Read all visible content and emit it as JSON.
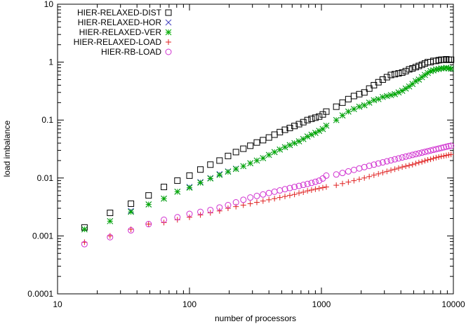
{
  "chart_data": {
    "type": "scatter",
    "title": "",
    "xlabel": "number of processors",
    "ylabel": "load imbalance",
    "x_scale": "log",
    "y_scale": "log",
    "xlim": [
      10,
      10000
    ],
    "ylim": [
      0.0001,
      10
    ],
    "x_ticks": [
      {
        "value": 10,
        "label": "10"
      },
      {
        "value": 100,
        "label": "100"
      },
      {
        "value": 1000,
        "label": "1000"
      },
      {
        "value": 10000,
        "label": "10000"
      }
    ],
    "y_ticks": [
      {
        "value": 10,
        "label": "10"
      },
      {
        "value": 1,
        "label": "1"
      },
      {
        "value": 0.1,
        "label": "0.1"
      },
      {
        "value": 0.01,
        "label": "0.01"
      },
      {
        "value": 0.001,
        "label": "0.001"
      },
      {
        "value": 0.0001,
        "label": "0.0001"
      }
    ],
    "grid": false,
    "legend_position": "top-left",
    "x": [
      16,
      25,
      36,
      49,
      64,
      81,
      100,
      121,
      144,
      169,
      196,
      225,
      256,
      289,
      324,
      361,
      400,
      441,
      484,
      529,
      576,
      625,
      676,
      729,
      784,
      841,
      900,
      961,
      1024,
      1089,
      1296,
      1444,
      1600,
      1764,
      1936,
      2116,
      2304,
      2500,
      2704,
      2916,
      3136,
      3364,
      3600,
      3844,
      4096,
      4356,
      4624,
      4900,
      5184,
      5476,
      5776,
      6084,
      6400,
      6724,
      7056,
      7396,
      7744,
      8100,
      8464,
      8836,
      9216,
      9604
    ],
    "series": [
      {
        "name": "HIER-RELAXED-DIST",
        "marker": "square",
        "color": "#000000",
        "values": [
          0.0014,
          0.0025,
          0.0036,
          0.005,
          0.007,
          0.009,
          0.011,
          0.014,
          0.017,
          0.02,
          0.024,
          0.028,
          0.032,
          0.036,
          0.041,
          0.045,
          0.05,
          0.056,
          0.062,
          0.068,
          0.073,
          0.079,
          0.085,
          0.092,
          0.1,
          0.105,
          0.11,
          0.115,
          0.125,
          0.14,
          0.17,
          0.2,
          0.23,
          0.26,
          0.28,
          0.3,
          0.35,
          0.4,
          0.45,
          0.5,
          0.55,
          0.6,
          0.62,
          0.64,
          0.66,
          0.7,
          0.75,
          0.78,
          0.82,
          0.86,
          0.9,
          0.95,
          1.0,
          1.0,
          1.05,
          1.05,
          1.08,
          1.1,
          1.1,
          1.12,
          1.1,
          1.1
        ]
      },
      {
        "name": "HIER-RELAXED-HOR",
        "marker": "x",
        "color": "#4040c0",
        "values": [
          0.0013,
          0.0018,
          0.0027,
          0.0035,
          0.0044,
          0.0058,
          0.007,
          0.0085,
          0.01,
          0.0117,
          0.013,
          0.0145,
          0.016,
          0.018,
          0.02,
          0.022,
          0.025,
          0.028,
          0.031,
          0.034,
          0.037,
          0.04,
          0.043,
          0.047,
          0.052,
          0.056,
          0.06,
          0.065,
          0.07,
          0.08,
          0.1,
          0.12,
          0.14,
          0.155,
          0.17,
          0.18,
          0.2,
          0.22,
          0.23,
          0.25,
          0.26,
          0.27,
          0.28,
          0.3,
          0.32,
          0.35,
          0.38,
          0.42,
          0.47,
          0.5,
          0.55,
          0.6,
          0.65,
          0.7,
          0.72,
          0.75,
          0.76,
          0.78,
          0.78,
          0.8,
          0.78,
          0.77
        ]
      },
      {
        "name": "HIER-RELAXED-VER",
        "marker": "star",
        "color": "#00aa00",
        "values": [
          0.0013,
          0.0018,
          0.0026,
          0.0035,
          0.0044,
          0.0058,
          0.0068,
          0.0083,
          0.0098,
          0.0113,
          0.0128,
          0.0143,
          0.016,
          0.018,
          0.02,
          0.022,
          0.025,
          0.028,
          0.031,
          0.034,
          0.037,
          0.04,
          0.043,
          0.047,
          0.052,
          0.056,
          0.06,
          0.065,
          0.07,
          0.08,
          0.1,
          0.12,
          0.14,
          0.155,
          0.17,
          0.18,
          0.2,
          0.22,
          0.23,
          0.25,
          0.26,
          0.27,
          0.28,
          0.3,
          0.32,
          0.35,
          0.38,
          0.42,
          0.47,
          0.5,
          0.55,
          0.6,
          0.65,
          0.7,
          0.72,
          0.75,
          0.76,
          0.78,
          0.78,
          0.8,
          0.78,
          0.77
        ]
      },
      {
        "name": "HIER-RELAXED-LOAD",
        "marker": "plus",
        "color": "#e02020",
        "values": [
          0.00078,
          0.001,
          0.0013,
          0.0016,
          0.0017,
          0.0019,
          0.0021,
          0.0023,
          0.0025,
          0.0027,
          0.003,
          0.0032,
          0.0034,
          0.0036,
          0.0038,
          0.004,
          0.0042,
          0.0044,
          0.0046,
          0.0048,
          0.005,
          0.0052,
          0.0055,
          0.0057,
          0.006,
          0.0062,
          0.0064,
          0.0066,
          0.0068,
          0.007,
          0.0075,
          0.008,
          0.0085,
          0.009,
          0.0095,
          0.01,
          0.0106,
          0.0112,
          0.0118,
          0.0124,
          0.013,
          0.0136,
          0.0142,
          0.0148,
          0.0155,
          0.016,
          0.0165,
          0.017,
          0.0178,
          0.0185,
          0.019,
          0.0198,
          0.0205,
          0.021,
          0.0218,
          0.0225,
          0.023,
          0.0236,
          0.024,
          0.0245,
          0.025,
          0.0255
        ]
      },
      {
        "name": "HIER-RB-LOAD",
        "marker": "circle",
        "color": "#d030d0",
        "values": [
          0.00072,
          0.00095,
          0.00125,
          0.0016,
          0.0019,
          0.0021,
          0.0024,
          0.0026,
          0.0028,
          0.0031,
          0.0034,
          0.0038,
          0.0042,
          0.0046,
          0.0049,
          0.0052,
          0.0055,
          0.0058,
          0.0061,
          0.0064,
          0.0067,
          0.007,
          0.0073,
          0.0076,
          0.0079,
          0.0082,
          0.0086,
          0.009,
          0.0098,
          0.011,
          0.0115,
          0.0122,
          0.013,
          0.0138,
          0.0146,
          0.0154,
          0.0162,
          0.017,
          0.0178,
          0.0186,
          0.0194,
          0.0202,
          0.021,
          0.0218,
          0.0226,
          0.0234,
          0.0242,
          0.025,
          0.0258,
          0.0266,
          0.0274,
          0.0282,
          0.029,
          0.0298,
          0.0306,
          0.0314,
          0.0322,
          0.033,
          0.0338,
          0.0346,
          0.0355,
          0.036
        ]
      }
    ]
  }
}
